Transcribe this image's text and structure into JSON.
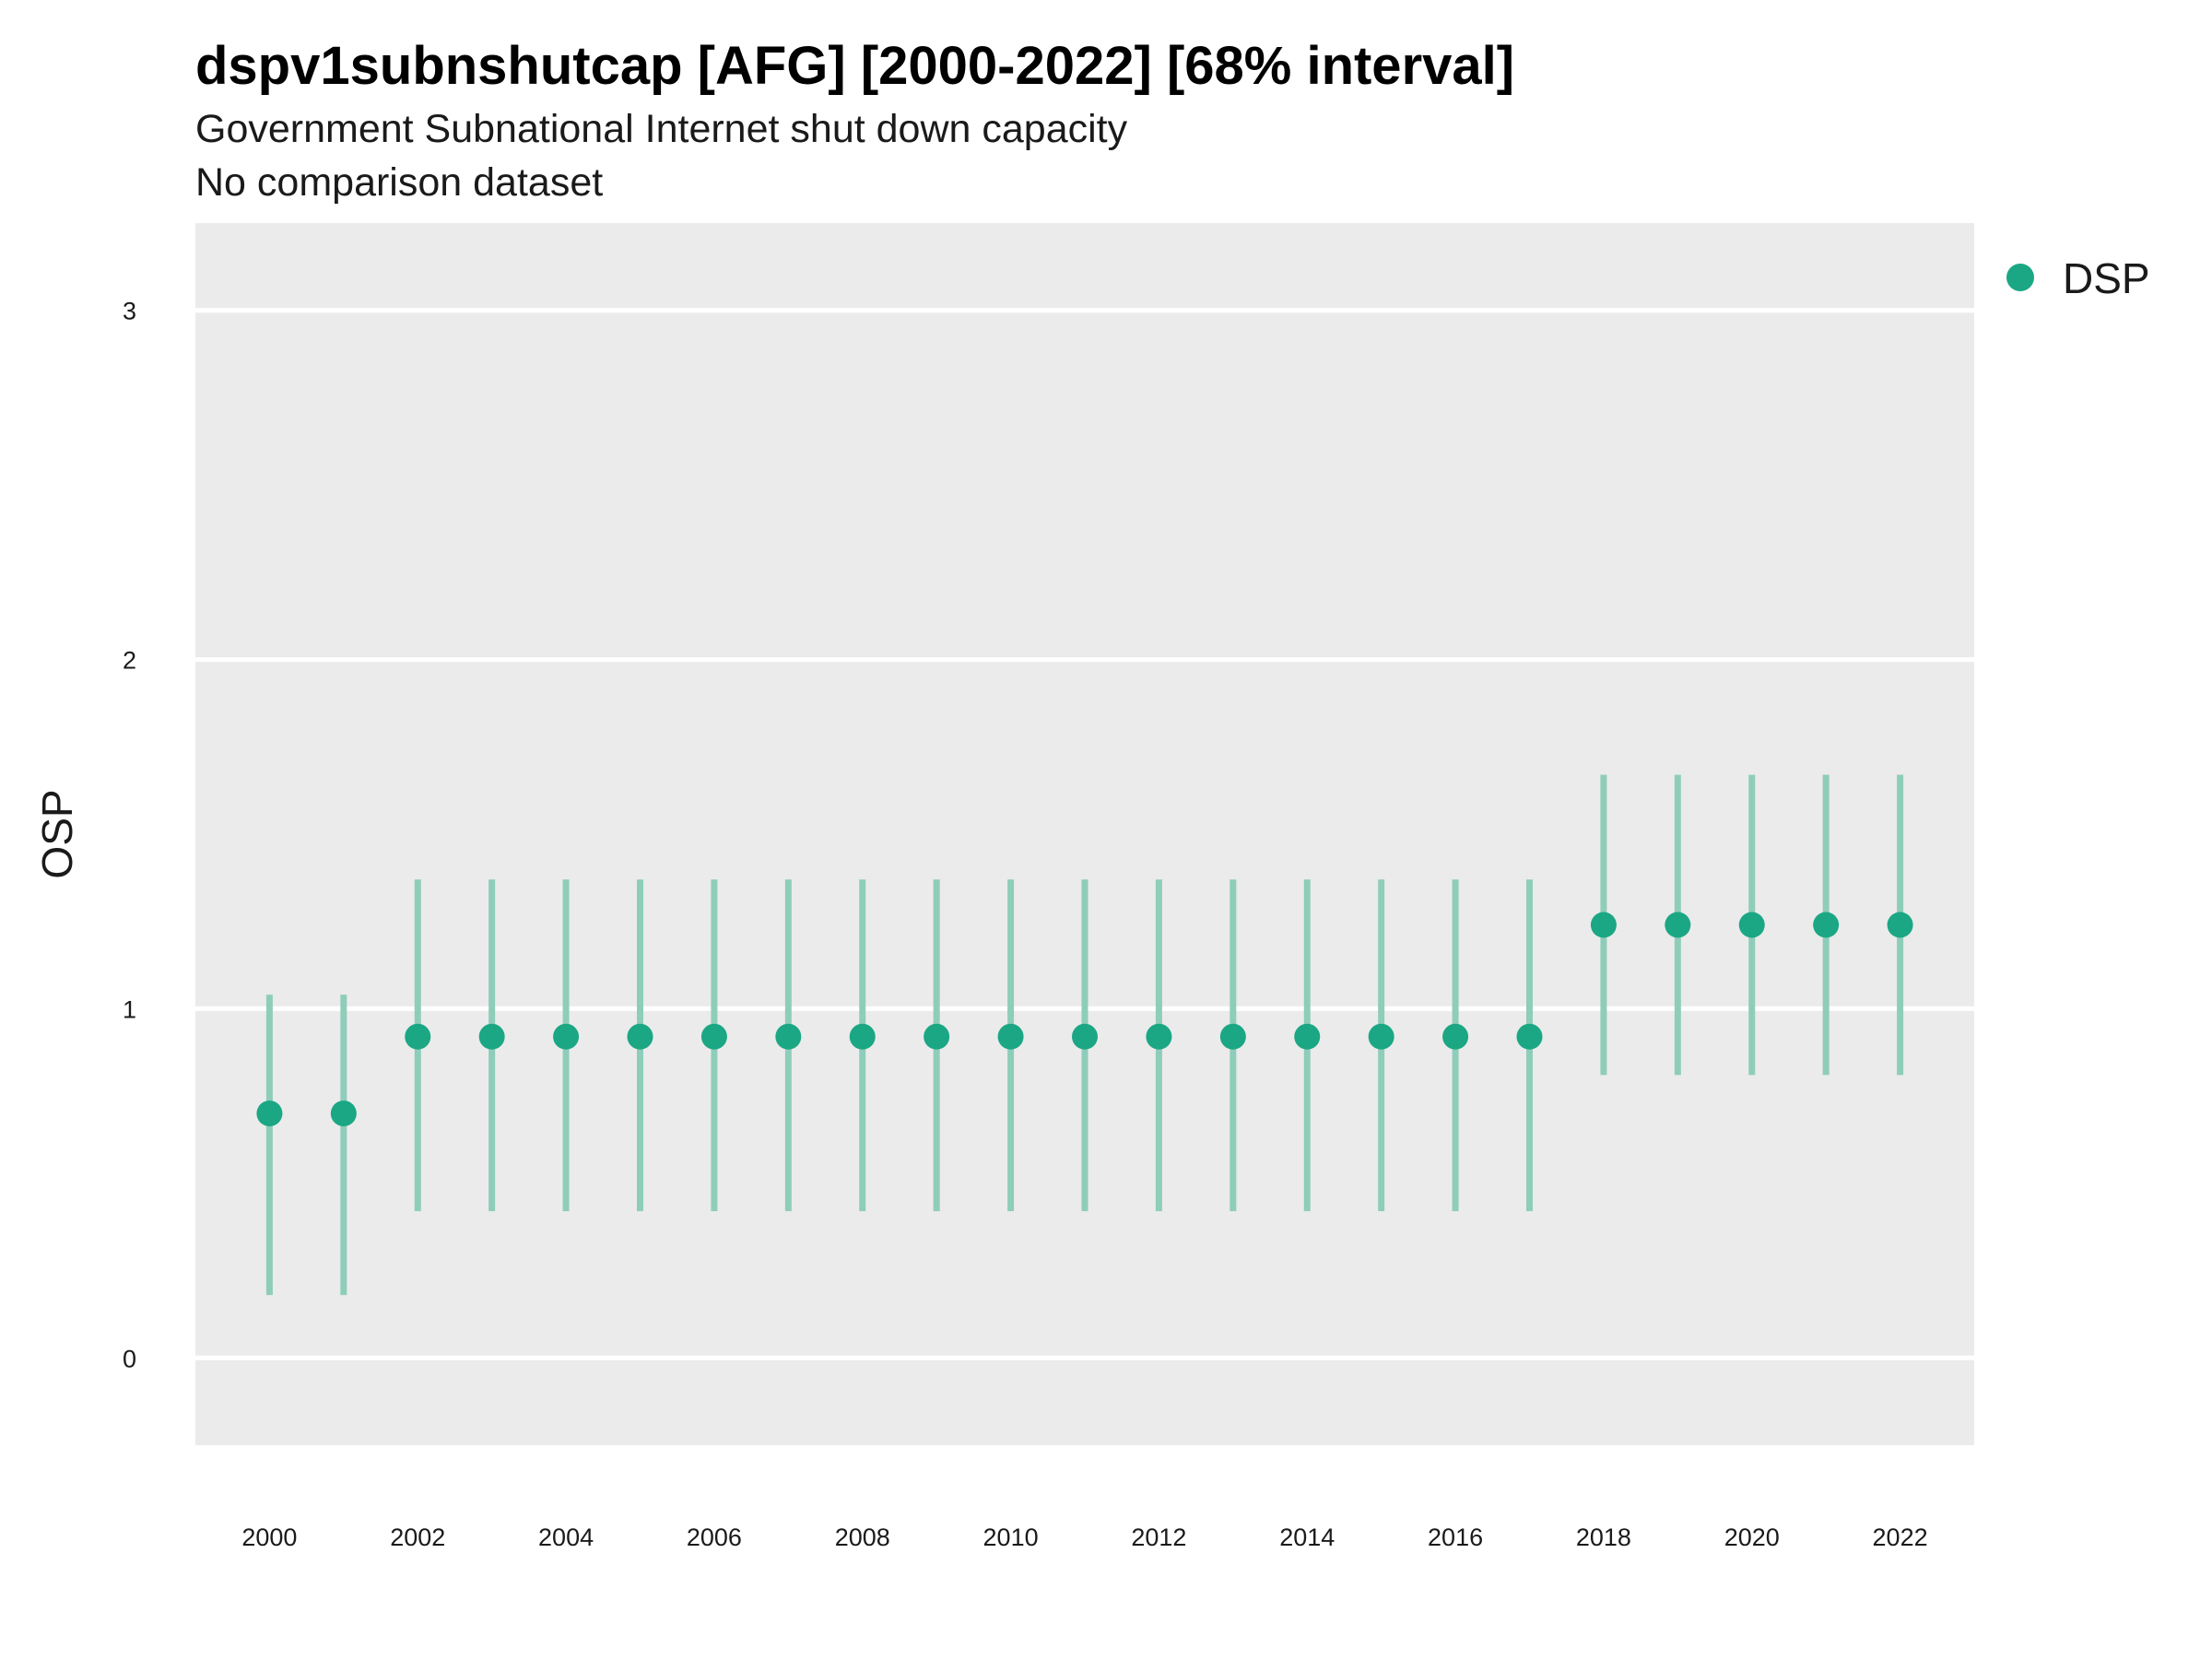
{
  "title": "dspv1subnshutcap [AFG] [2000-2022] [68% interval]",
  "subtitle": "Government Subnational Internet shut down capacity",
  "caption": "No comparison dataset",
  "legend": {
    "position": "top-right",
    "items": [
      {
        "label": "DSP",
        "color": "#1BA784"
      }
    ]
  },
  "colors": {
    "panel": "#EBEBEB",
    "grid": "#FFFFFF",
    "point": "#1BA784",
    "interval": "#8ECDB9"
  },
  "chart_data": {
    "type": "scatter",
    "title": "dspv1subnshutcap [AFG] [2000-2022] [68% interval]",
    "subtitle": "Government Subnational Internet shut down capacity",
    "xlabel": "",
    "ylabel": "OSP",
    "xlim": [
      1999,
      2023
    ],
    "ylim": [
      -0.25,
      3.25
    ],
    "grid": true,
    "x_ticks": [
      "2000",
      "2002",
      "2004",
      "2006",
      "2008",
      "2010",
      "2012",
      "2014",
      "2016",
      "2018",
      "2020",
      "2022"
    ],
    "y_ticks": [
      "0",
      "1",
      "2",
      "3"
    ],
    "series": [
      {
        "name": "DSP",
        "color": "#1BA784",
        "x": [
          2000,
          2001,
          2002,
          2003,
          2004,
          2005,
          2006,
          2007,
          2008,
          2009,
          2010,
          2011,
          2012,
          2013,
          2014,
          2015,
          2016,
          2017,
          2018,
          2019,
          2020,
          2021,
          2022
        ],
        "y": [
          0.7,
          0.7,
          0.92,
          0.92,
          0.92,
          0.92,
          0.92,
          0.92,
          0.92,
          0.92,
          0.92,
          0.92,
          0.92,
          0.92,
          0.92,
          0.92,
          0.92,
          0.92,
          1.24,
          1.24,
          1.24,
          1.24,
          1.24
        ],
        "lower": [
          0.18,
          0.18,
          0.42,
          0.42,
          0.42,
          0.42,
          0.42,
          0.42,
          0.42,
          0.42,
          0.42,
          0.42,
          0.42,
          0.42,
          0.42,
          0.42,
          0.42,
          0.42,
          0.81,
          0.81,
          0.81,
          0.81,
          0.81
        ],
        "upper": [
          1.04,
          1.04,
          1.37,
          1.37,
          1.37,
          1.37,
          1.37,
          1.37,
          1.37,
          1.37,
          1.37,
          1.37,
          1.37,
          1.37,
          1.37,
          1.37,
          1.37,
          1.37,
          1.67,
          1.67,
          1.67,
          1.67,
          1.67
        ]
      }
    ]
  }
}
